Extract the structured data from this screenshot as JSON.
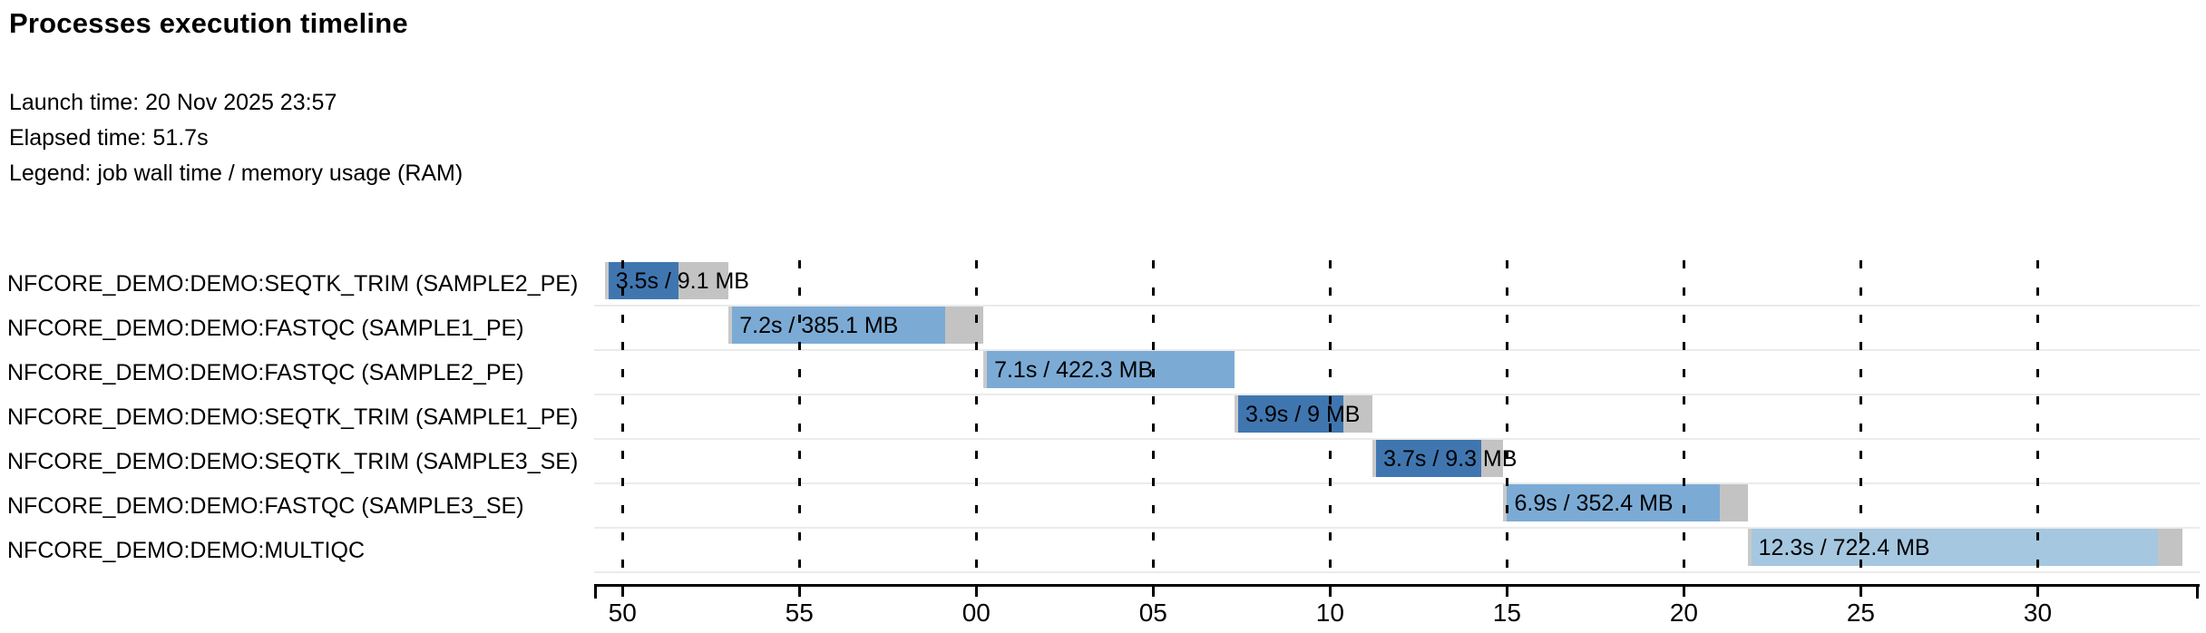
{
  "title": "Processes execution timeline",
  "meta": {
    "launch_time": "Launch time: 20 Nov 2025 23:57",
    "elapsed_time": "Elapsed time: 51.7s",
    "legend": "Legend: job wall time / memory usage (RAM)"
  },
  "chart_data": {
    "type": "timeline",
    "title": "Processes execution timeline",
    "x_axis": {
      "unit": "seconds (clock seconds past 23:57:00; ticks show ss of mm:ss)",
      "domain_start_s": 49.2,
      "domain_end_s": 94.5,
      "tick_interval_s": 5,
      "grid": "dashed-vertical",
      "ticks": [
        {
          "t": 50,
          "label": "50"
        },
        {
          "t": 55,
          "label": "55"
        },
        {
          "t": 60,
          "label": "00"
        },
        {
          "t": 65,
          "label": "05"
        },
        {
          "t": 70,
          "label": "10"
        },
        {
          "t": 75,
          "label": "15"
        },
        {
          "t": 80,
          "label": "20"
        },
        {
          "t": 85,
          "label": "25"
        },
        {
          "t": 90,
          "label": "30"
        }
      ]
    },
    "series_colors": {
      "SEQTK_TRIM": "#4076b0",
      "FASTQC": "#7babd5",
      "MULTIQC": "#a5c7e0",
      "tail": "#c3c3c3"
    },
    "tasks": [
      {
        "name": "NFCORE_DEMO:DEMO:SEQTK_TRIM (SAMPLE2_PE)",
        "process": "SEQTK_TRIM",
        "start_s": 49.5,
        "wall_time_s": 3.5,
        "run_s": 2.05,
        "memory": "9.1 MB",
        "label": "3.5s / 9.1 MB"
      },
      {
        "name": "NFCORE_DEMO:DEMO:FASTQC (SAMPLE1_PE)",
        "process": "FASTQC",
        "start_s": 53.0,
        "wall_time_s": 7.2,
        "run_s": 6.1,
        "memory": "385.1 MB",
        "label": "7.2s / 385.1 MB"
      },
      {
        "name": "NFCORE_DEMO:DEMO:FASTQC (SAMPLE2_PE)",
        "process": "FASTQC",
        "start_s": 60.2,
        "wall_time_s": 7.1,
        "run_s": 7.1,
        "memory": "422.3 MB",
        "label": "7.1s / 422.3 MB"
      },
      {
        "name": "NFCORE_DEMO:DEMO:SEQTK_TRIM (SAMPLE1_PE)",
        "process": "SEQTK_TRIM",
        "start_s": 67.3,
        "wall_time_s": 3.9,
        "run_s": 3.05,
        "memory": "9 MB",
        "label": "3.9s / 9 MB"
      },
      {
        "name": "NFCORE_DEMO:DEMO:SEQTK_TRIM (SAMPLE3_SE)",
        "process": "SEQTK_TRIM",
        "start_s": 71.2,
        "wall_time_s": 3.7,
        "run_s": 3.05,
        "memory": "9.3 MB",
        "label": "3.7s / 9.3 MB"
      },
      {
        "name": "NFCORE_DEMO:DEMO:FASTQC (SAMPLE3_SE)",
        "process": "FASTQC",
        "start_s": 74.9,
        "wall_time_s": 6.9,
        "run_s": 6.1,
        "memory": "352.4 MB",
        "label": "6.9s / 352.4 MB"
      },
      {
        "name": "NFCORE_DEMO:DEMO:MULTIQC",
        "process": "MULTIQC",
        "start_s": 81.8,
        "wall_time_s": 12.3,
        "run_s": 11.6,
        "memory": "722.4 MB",
        "label": "12.3s / 722.4 MB"
      }
    ]
  }
}
